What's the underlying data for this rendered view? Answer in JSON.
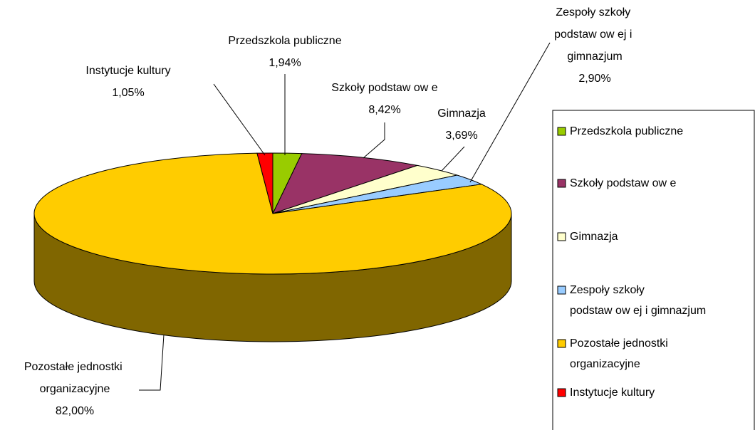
{
  "chart_data": {
    "type": "pie3d",
    "categories": [
      "Przedszkola publiczne",
      "Szkoły podstaw ow e",
      "Gimnazja",
      "Zespoły szkoły podstaw ow ej i gimnazjum",
      "Pozostałe jednostki organizacyjne",
      "Instytucje kultury"
    ],
    "values": [
      1.94,
      8.42,
      3.69,
      2.9,
      82.0,
      1.05
    ],
    "value_labels": [
      "1,94%",
      "8,42%",
      "3,69%",
      "2,90%",
      "82,00%",
      "1,05%"
    ],
    "colors": [
      "#99cc00",
      "#993366",
      "#ffffcc",
      "#99ccff",
      "#ffcc00",
      "#ff0000"
    ],
    "legend": "right"
  }
}
